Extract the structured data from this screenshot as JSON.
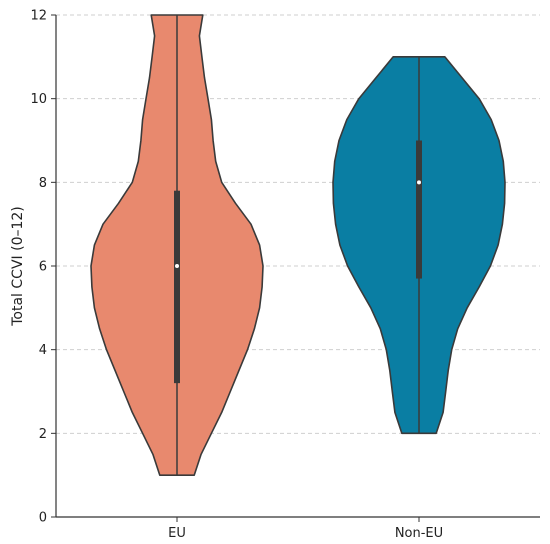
{
  "chart_data": {
    "type": "violin",
    "ylabel": "Total CCVI (0–12)",
    "xlabel": "",
    "ylim": [
      0,
      12
    ],
    "y_ticks": [
      0,
      2,
      4,
      6,
      8,
      10,
      12
    ],
    "grid": "horizontal dashed",
    "categories": [
      "EU",
      "Non-EU"
    ],
    "series": [
      {
        "category": "EU",
        "color": "#e8896e",
        "min": 1,
        "q1": 3.2,
        "median": 6,
        "q3": 7.8,
        "max": 12,
        "density": [
          [
            1,
            0.2
          ],
          [
            1.5,
            0.28
          ],
          [
            2,
            0.4
          ],
          [
            2.5,
            0.52
          ],
          [
            3,
            0.62
          ],
          [
            3.5,
            0.72
          ],
          [
            4,
            0.82
          ],
          [
            4.5,
            0.9
          ],
          [
            5,
            0.96
          ],
          [
            5.5,
            0.99
          ],
          [
            6,
            1.0
          ],
          [
            6.5,
            0.96
          ],
          [
            7,
            0.86
          ],
          [
            7.5,
            0.68
          ],
          [
            8,
            0.52
          ],
          [
            8.5,
            0.45
          ],
          [
            9,
            0.42
          ],
          [
            9.5,
            0.4
          ],
          [
            10,
            0.36
          ],
          [
            10.5,
            0.32
          ],
          [
            11,
            0.29
          ],
          [
            11.5,
            0.26
          ],
          [
            12,
            0.3
          ]
        ]
      },
      {
        "category": "Non-EU",
        "color": "#0a7ea3",
        "min": 2,
        "q1": 5.7,
        "median": 8,
        "q3": 9,
        "max": 11,
        "density": [
          [
            2,
            0.2
          ],
          [
            2.5,
            0.28
          ],
          [
            3,
            0.31
          ],
          [
            3.5,
            0.34
          ],
          [
            4,
            0.38
          ],
          [
            4.5,
            0.45
          ],
          [
            5,
            0.56
          ],
          [
            5.5,
            0.7
          ],
          [
            6,
            0.83
          ],
          [
            6.5,
            0.92
          ],
          [
            7,
            0.97
          ],
          [
            7.5,
            0.995
          ],
          [
            8,
            1.0
          ],
          [
            8.5,
            0.98
          ],
          [
            9,
            0.93
          ],
          [
            9.5,
            0.84
          ],
          [
            10,
            0.7
          ],
          [
            10.5,
            0.5
          ],
          [
            11,
            0.3
          ]
        ]
      }
    ]
  }
}
